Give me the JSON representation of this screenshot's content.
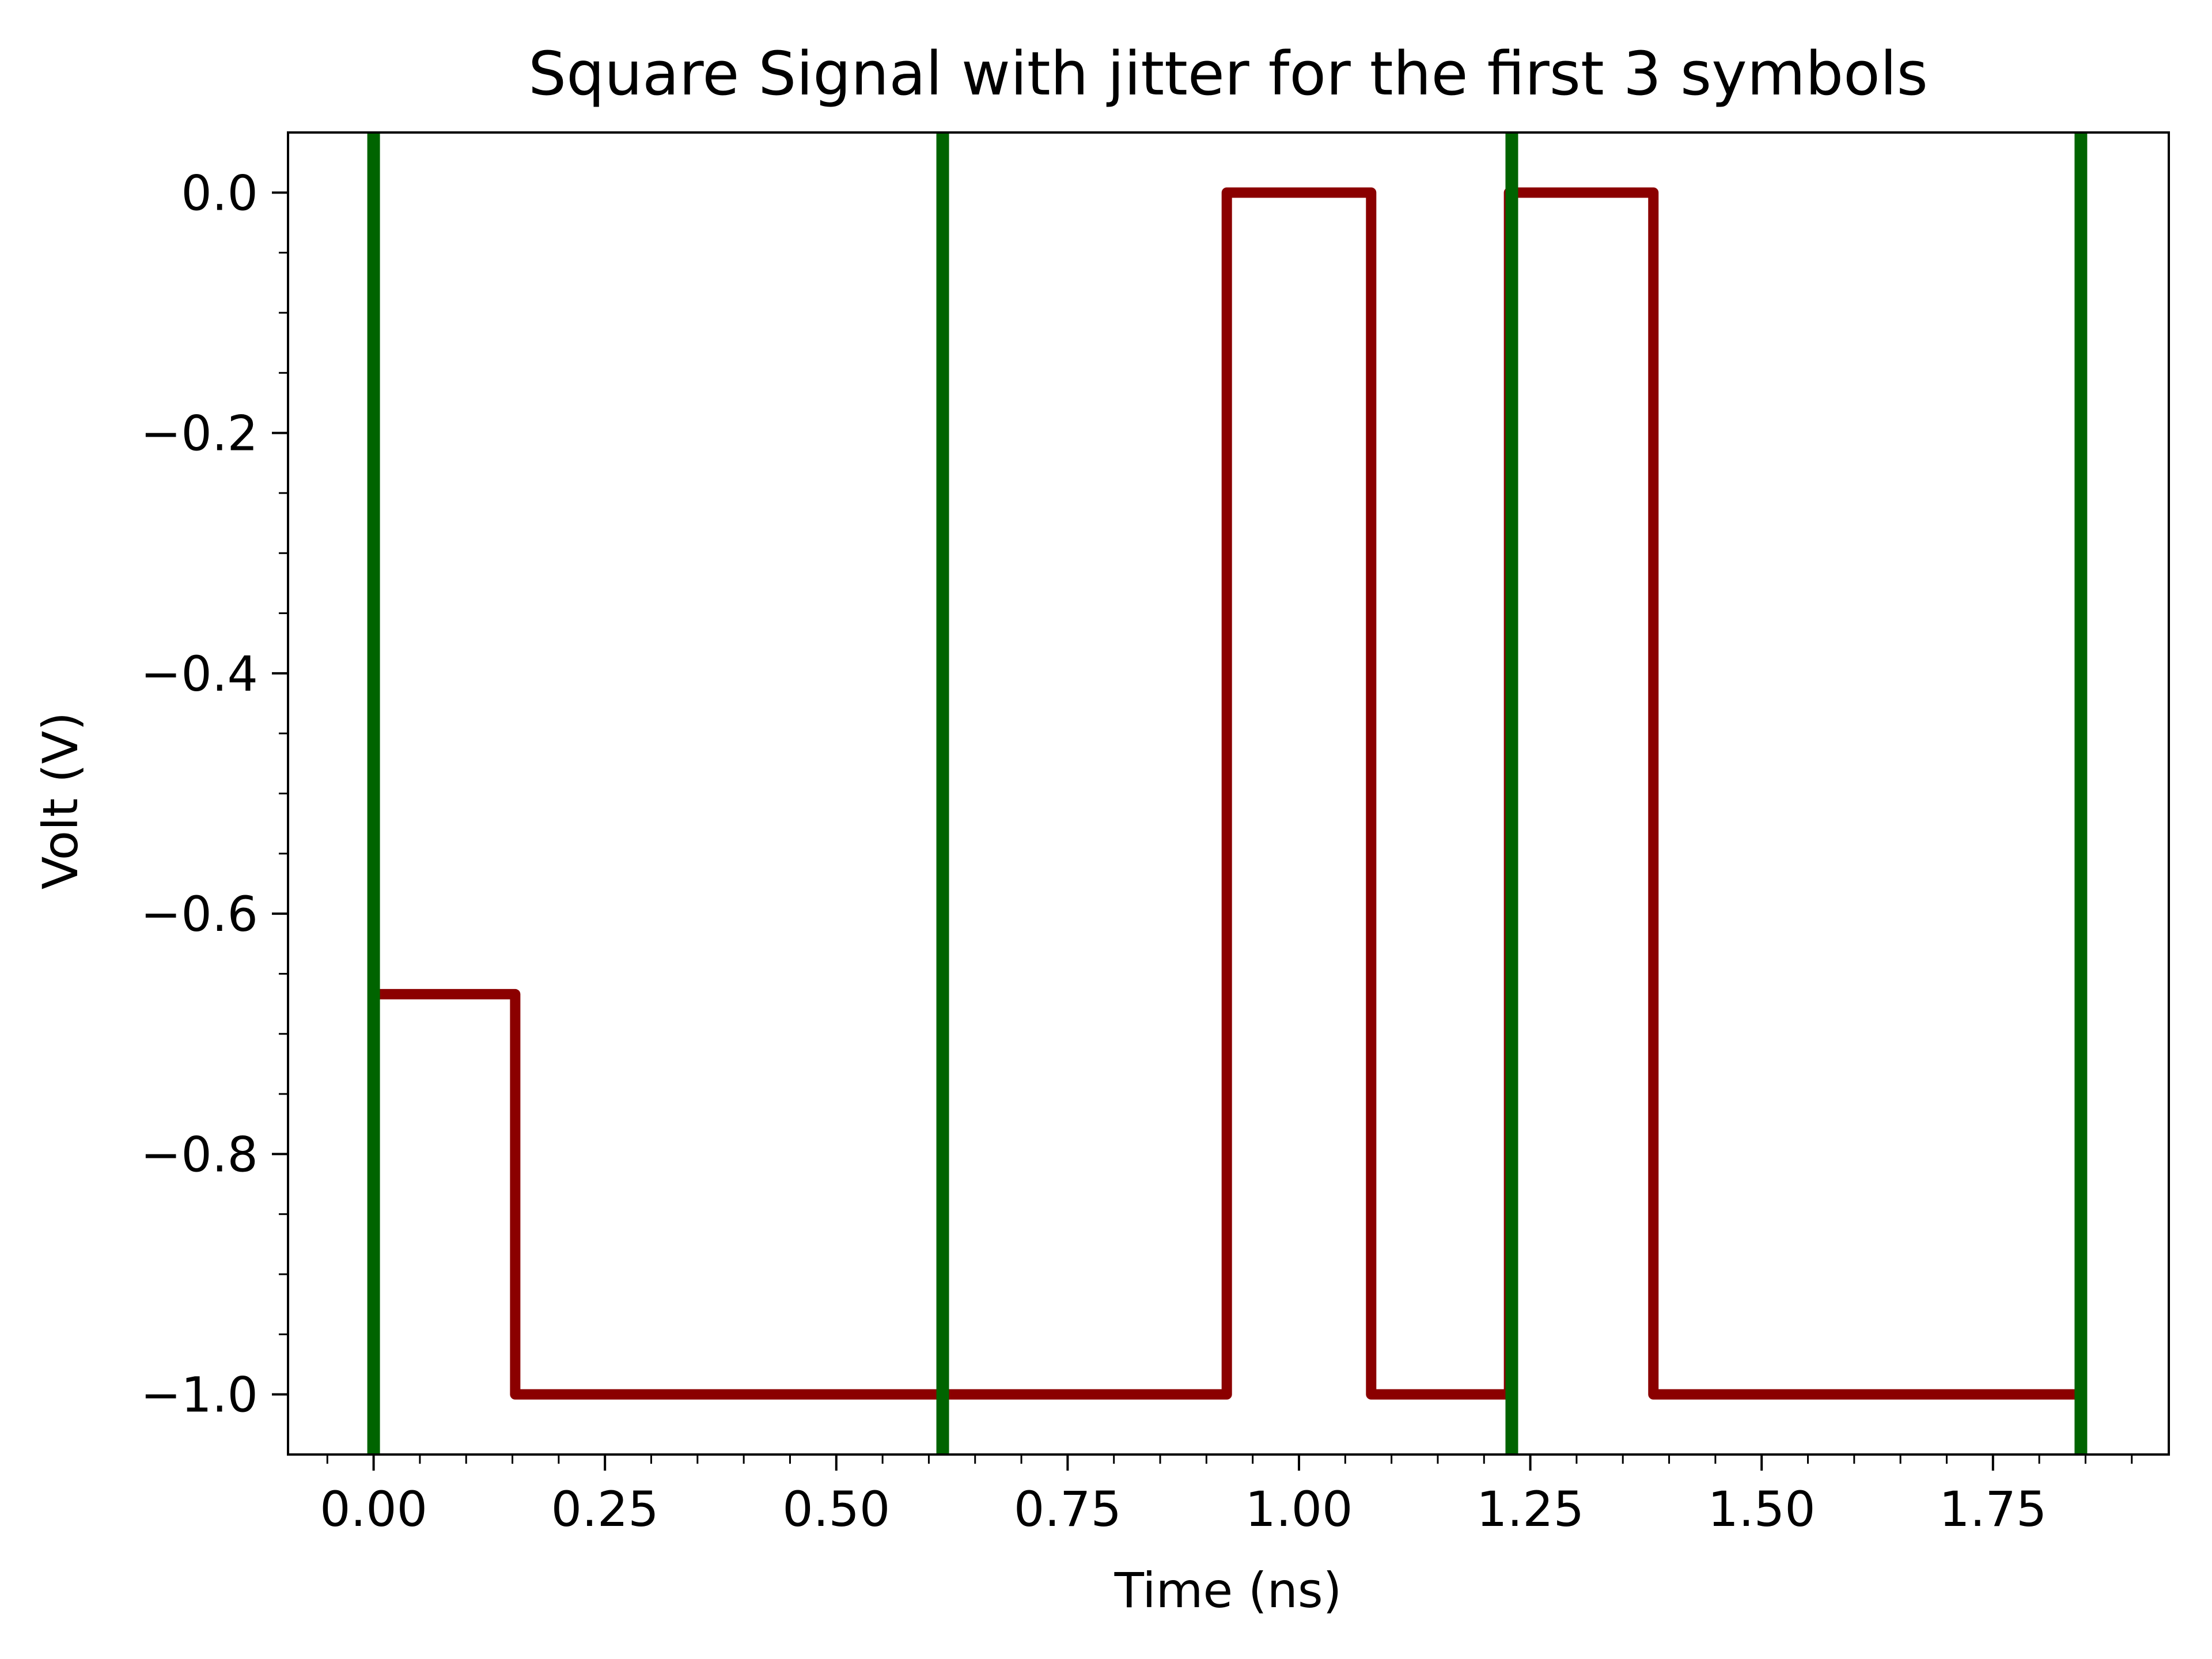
{
  "chart_data": {
    "type": "line",
    "title": "Square Signal with jitter for the first 3 symbols",
    "xlabel": "Time (ns)",
    "ylabel": "Volt (V)",
    "xlim": [
      -0.0925,
      1.94
    ],
    "ylim": [
      -1.05,
      0.05
    ],
    "x_ticks": [
      0.0,
      0.25,
      0.5,
      0.75,
      1.0,
      1.25,
      1.5,
      1.75
    ],
    "x_tick_labels": [
      "0.00",
      "0.25",
      "0.50",
      "0.75",
      "1.00",
      "1.25",
      "1.50",
      "1.75"
    ],
    "y_ticks": [
      0.0,
      -0.2,
      -0.4,
      -0.6,
      -0.8,
      -1.0
    ],
    "y_tick_labels": [
      "0.0",
      "−0.2",
      "−0.4",
      "−0.6",
      "−0.8",
      "−1.0"
    ],
    "x_minor_step": 0.05,
    "y_minor_step": 0.05,
    "grid": false,
    "series": [
      {
        "color": "#8b0000",
        "step_x": [
          0.0,
          0.153,
          0.153,
          0.922,
          0.922,
          1.078,
          1.078,
          1.227,
          1.227,
          1.383,
          1.383,
          1.84
        ],
        "step_y": [
          -0.667,
          -0.667,
          -1.0,
          -1.0,
          0.0,
          0.0,
          -1.0,
          -1.0,
          0.0,
          0.0,
          -1.0,
          -1.0
        ]
      }
    ],
    "vlines": {
      "color": "#006400",
      "x": [
        0.0,
        0.615,
        1.23,
        1.845
      ]
    }
  }
}
